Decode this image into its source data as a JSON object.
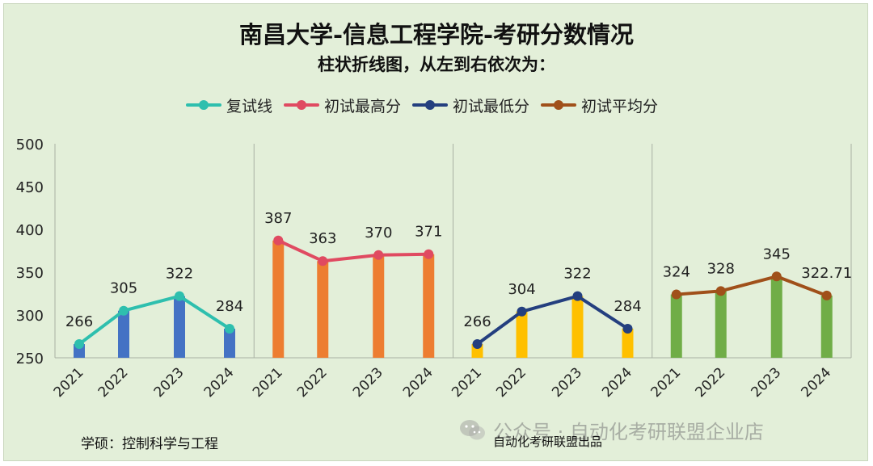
{
  "header": {
    "title": "南昌大学-信息工程学院-考研分数情况",
    "subtitle": "柱状折线图，从左到右依次为："
  },
  "footer": {
    "major": "学硕：控制科学与工程",
    "producer": "自动化考研联盟出品",
    "watermark": "公众号 · 自动化考研联盟企业店"
  },
  "chart_data": {
    "type": "bar",
    "title": "南昌大学-信息工程学院-考研分数情况",
    "ylim": [
      250,
      500
    ],
    "yticks": [
      250,
      300,
      350,
      400,
      450,
      500
    ],
    "grid": false,
    "legend_position": "top",
    "panels": [
      {
        "name": "复试线",
        "categories": [
          "2021",
          "2022",
          "2023",
          "2024"
        ],
        "values": [
          266,
          305,
          322,
          284
        ],
        "labels": [
          "266",
          "305",
          "322",
          "284"
        ],
        "bar_color": "#4472c4",
        "line_color": "#2ebfae"
      },
      {
        "name": "初试最高分",
        "categories": [
          "2021",
          "2022",
          "2023",
          "2024"
        ],
        "values": [
          387,
          363,
          370,
          371
        ],
        "labels": [
          "387",
          "363",
          "370",
          "371"
        ],
        "bar_color": "#ed7d31",
        "line_color": "#e04a61"
      },
      {
        "name": "初试最低分",
        "categories": [
          "2021",
          "2022",
          "2023",
          "2024"
        ],
        "values": [
          266,
          304,
          322,
          284
        ],
        "labels": [
          "266",
          "304",
          "322",
          "284"
        ],
        "bar_color": "#ffc000",
        "line_color": "#243f7f"
      },
      {
        "name": "初试平均分",
        "categories": [
          "2021",
          "2022",
          "2023",
          "2024"
        ],
        "values": [
          324,
          328,
          345,
          322.71
        ],
        "labels": [
          "324",
          "328",
          "345",
          "322.71"
        ],
        "bar_color": "#70ad47",
        "line_color": "#a0501a"
      }
    ]
  },
  "legend": [
    {
      "label": "复试线",
      "color": "#2ebfae"
    },
    {
      "label": "初试最高分",
      "color": "#e04a61"
    },
    {
      "label": "初试最低分",
      "color": "#243f7f"
    },
    {
      "label": "初试平均分",
      "color": "#a0501a"
    }
  ]
}
